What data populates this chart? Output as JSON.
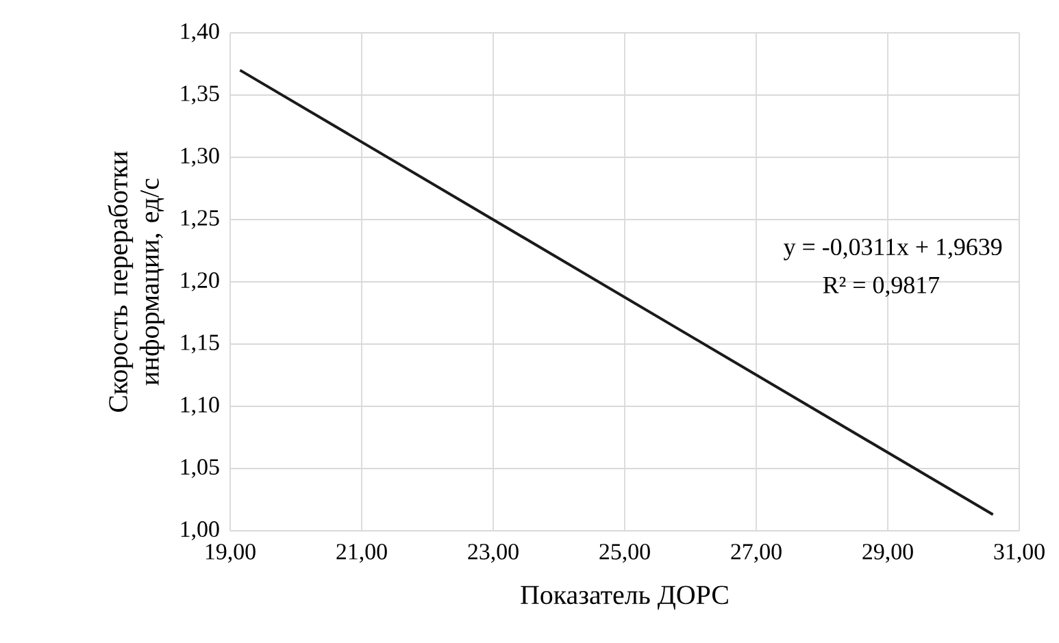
{
  "chart_data": {
    "type": "line",
    "xlabel": "Показатель ДОРС",
    "ylabel": "Скорость переработки информации, ед/с",
    "x": [
      19.15,
      30.6
    ],
    "series": [
      {
        "color": "#1a1a1a",
        "values": [
          1.37,
          1.013
        ]
      }
    ],
    "xlim": [
      19,
      31
    ],
    "ylim": [
      1.0,
      1.4
    ],
    "xticks": [
      {
        "value": 19,
        "label": "19,00"
      },
      {
        "value": 21,
        "label": "21,00"
      },
      {
        "value": 23,
        "label": "23,00"
      },
      {
        "value": 25,
        "label": "25,00"
      },
      {
        "value": 27,
        "label": "27,00"
      },
      {
        "value": 29,
        "label": "29,00"
      },
      {
        "value": 31,
        "label": "31,00"
      }
    ],
    "yticks": [
      {
        "value": 1.0,
        "label": "1,00"
      },
      {
        "value": 1.05,
        "label": "1,05"
      },
      {
        "value": 1.1,
        "label": "1,10"
      },
      {
        "value": 1.15,
        "label": "1,15"
      },
      {
        "value": 1.2,
        "label": "1,20"
      },
      {
        "value": 1.25,
        "label": "1,25"
      },
      {
        "value": 1.3,
        "label": "1,30"
      },
      {
        "value": 1.35,
        "label": "1,35"
      },
      {
        "value": 1.4,
        "label": "1,40"
      }
    ],
    "annotations": [
      "y = -0,0311x + 1,9639",
      "R² = 0,9817"
    ],
    "grid": true,
    "marker": "none",
    "line_style": "solid"
  }
}
